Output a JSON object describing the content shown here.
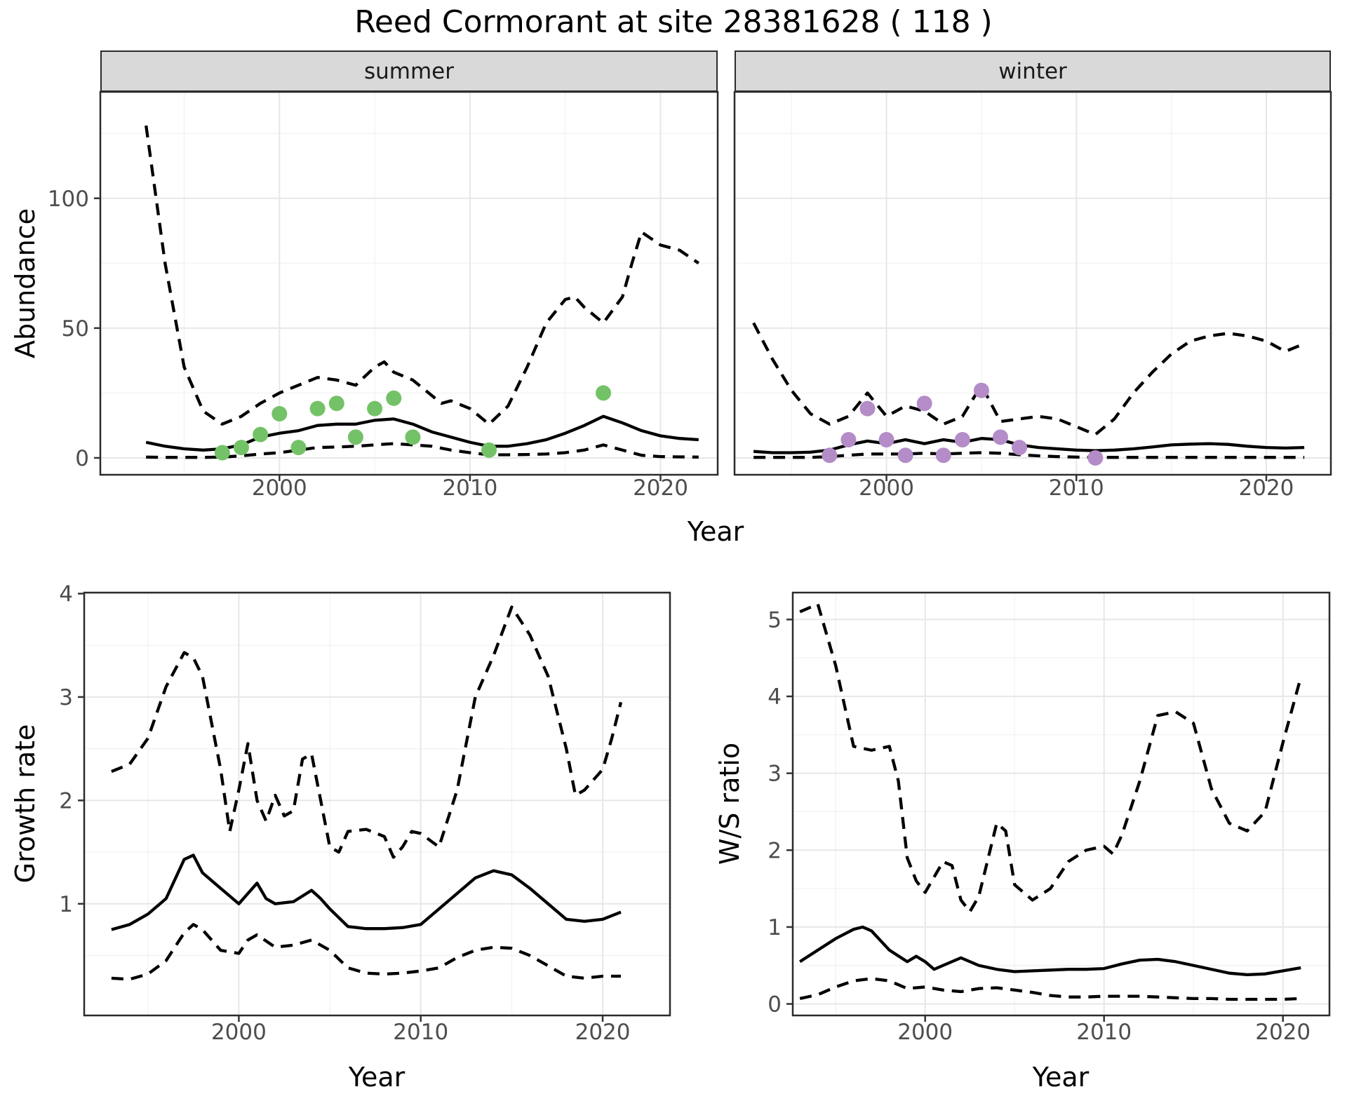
{
  "title": "Reed Cormorant at site 28381628 ( 118 )",
  "colors": {
    "summer_points": "#74c267",
    "winter_points": "#b48cc8",
    "line": "#000000",
    "grid_major": "#e7e7e7",
    "grid_minor": "#f3f3f3",
    "strip_bg": "#d9d9d9",
    "panel_border": "#2b2b2b",
    "tick_text": "#4d4d4d"
  },
  "chart_data": [
    {
      "id": "abundance_summer",
      "type": "line",
      "title": "summer",
      "xlabel": "Year",
      "ylabel": "Abundance",
      "xlim": [
        1990.6,
        2023.0
      ],
      "ylim": [
        -6.5,
        141
      ],
      "xticks": [
        2000,
        2010,
        2020
      ],
      "yticks": [
        0,
        50,
        100
      ],
      "xminor": [
        1995,
        2005,
        2015
      ],
      "yminor": [
        25,
        75,
        125
      ],
      "grid": true,
      "legend": "none",
      "series": [
        {
          "name": "upper_ci",
          "style": "dashed",
          "x": [
            1993,
            1994,
            1995,
            1996,
            1997,
            1998,
            1999,
            2000,
            2001,
            2002,
            2003,
            2004,
            2005,
            2005.5,
            2006,
            2007,
            2008,
            2008.5,
            2009,
            2010,
            2011,
            2012,
            2013,
            2014,
            2015,
            2015.5,
            2016,
            2017,
            2018,
            2018.5,
            2019,
            2020,
            2021,
            2022
          ],
          "y": [
            128,
            75,
            35,
            18,
            13,
            16,
            21,
            25,
            28,
            31,
            30,
            28,
            35,
            37,
            33,
            30,
            24,
            21,
            22,
            19,
            13,
            20,
            35,
            52,
            61,
            62,
            58,
            52,
            62,
            75,
            87,
            82,
            80,
            75
          ]
        },
        {
          "name": "median",
          "style": "solid",
          "x": [
            1993,
            1994,
            1995,
            1996,
            1997,
            1998,
            1999,
            2000,
            2001,
            2002,
            2003,
            2004,
            2005,
            2006,
            2007,
            2008,
            2009,
            2010,
            2011,
            2012,
            2013,
            2014,
            2015,
            2016,
            2017,
            2018,
            2019,
            2020,
            2021,
            2022
          ],
          "y": [
            6,
            4.5,
            3.5,
            3,
            3.5,
            5,
            8,
            9.5,
            10.5,
            12.5,
            13,
            13,
            14.5,
            15,
            13,
            10,
            8,
            6,
            4.5,
            4.5,
            5.5,
            7,
            9.5,
            12.5,
            16,
            13.5,
            10.5,
            8.5,
            7.5,
            7
          ]
        },
        {
          "name": "lower_ci",
          "style": "dashed",
          "x": [
            1993,
            1994,
            1995,
            1996,
            1997,
            1998,
            1999,
            2000,
            2001,
            2002,
            2003,
            2004,
            2005,
            2006,
            2007,
            2008,
            2009,
            2010,
            2011,
            2012,
            2013,
            2014,
            2015,
            2016,
            2017,
            2018,
            2019,
            2020,
            2021,
            2022
          ],
          "y": [
            0.3,
            0.2,
            0.2,
            0.2,
            0.3,
            0.8,
            1.5,
            2,
            3,
            4,
            4.2,
            4.5,
            5,
            5.5,
            5,
            4.5,
            3,
            2,
            1.2,
            1.2,
            1.3,
            1.5,
            2,
            3,
            5,
            3,
            1,
            0.5,
            0.4,
            0.3
          ]
        }
      ],
      "points": {
        "name": "observed_counts_summer",
        "color": "#74c267",
        "x": [
          1997,
          1998,
          1999,
          2000,
          2001,
          2002,
          2003,
          2004,
          2005,
          2006,
          2007,
          2011,
          2017
        ],
        "y": [
          2,
          4,
          9,
          17,
          4,
          19,
          21,
          8,
          19,
          23,
          8,
          3,
          25
        ]
      }
    },
    {
      "id": "abundance_winter",
      "type": "line",
      "title": "winter",
      "xlabel": "Year",
      "ylabel": "Abundance",
      "xlim": [
        1992.0,
        2023.4
      ],
      "ylim": [
        -6.5,
        141
      ],
      "xticks": [
        2000,
        2010,
        2020
      ],
      "yticks": [
        0,
        50,
        100
      ],
      "xminor": [
        1995,
        2005,
        2015
      ],
      "yminor": [
        25,
        75,
        125
      ],
      "grid": true,
      "legend": "none",
      "series": [
        {
          "name": "upper_ci",
          "style": "dashed",
          "x": [
            1993,
            1994,
            1995,
            1996,
            1997,
            1998,
            1999,
            2000,
            2001,
            2002,
            2003,
            2004,
            2005,
            2006,
            2007,
            2008,
            2009,
            2010,
            2011,
            2012,
            2013,
            2014,
            2015,
            2016,
            2017,
            2018,
            2019,
            2020,
            2021,
            2022
          ],
          "y": [
            52,
            38,
            26,
            17,
            13,
            16,
            25,
            16,
            20,
            18,
            13,
            16,
            28,
            14,
            15,
            16,
            15,
            12,
            9,
            15,
            25,
            33,
            40,
            45,
            47,
            48,
            47,
            45,
            41,
            44
          ]
        },
        {
          "name": "median",
          "style": "solid",
          "x": [
            1993,
            1994,
            1995,
            1996,
            1997,
            1998,
            1999,
            2000,
            2001,
            2002,
            2003,
            2004,
            2005,
            2006,
            2007,
            2008,
            2009,
            2010,
            2011,
            2012,
            2013,
            2014,
            2015,
            2016,
            2017,
            2018,
            2019,
            2020,
            2021,
            2022
          ],
          "y": [
            2.5,
            2,
            2,
            2.2,
            3,
            5,
            6.5,
            5.5,
            7,
            5.5,
            7,
            6,
            7.5,
            7,
            5,
            4,
            3.5,
            3,
            2.8,
            3,
            3.5,
            4.2,
            5,
            5.3,
            5.5,
            5.2,
            4.5,
            4,
            3.8,
            4
          ]
        },
        {
          "name": "lower_ci",
          "style": "dashed",
          "x": [
            1993,
            1994,
            1995,
            1996,
            1997,
            1998,
            1999,
            2000,
            2001,
            2002,
            2003,
            2004,
            2005,
            2006,
            2007,
            2008,
            2009,
            2010,
            2011,
            2012,
            2013,
            2014,
            2015,
            2016,
            2017,
            2018,
            2019,
            2020,
            2021,
            2022
          ],
          "y": [
            0.2,
            0.2,
            0.2,
            0.2,
            0.5,
            1,
            1.5,
            1.5,
            1.5,
            1.8,
            1.5,
            1.8,
            2,
            1.8,
            1.2,
            0.8,
            0.5,
            0.3,
            0.2,
            0.2,
            0.2,
            0.2,
            0.2,
            0.2,
            0.2,
            0.2,
            0.2,
            0.2,
            0.2,
            0.2
          ]
        }
      ],
      "points": {
        "name": "observed_counts_winter",
        "color": "#b48cc8",
        "x": [
          1997,
          1998,
          1999,
          2000,
          2001,
          2002,
          2003,
          2004,
          2005,
          2006,
          2007,
          2011
        ],
        "y": [
          1,
          7,
          19,
          7,
          1,
          21,
          1,
          7,
          26,
          8,
          4,
          0
        ]
      }
    },
    {
      "id": "growth_rate",
      "type": "line",
      "title": "",
      "xlabel": "Year",
      "ylabel": "Growth rate",
      "xlim": [
        1991.5,
        2023.7
      ],
      "ylim": [
        -0.08,
        4.01
      ],
      "xticks": [
        2000,
        2010,
        2020
      ],
      "yticks": [
        1,
        2,
        3,
        4
      ],
      "xminor": [
        1995,
        2005,
        2015
      ],
      "yminor": [
        0.5,
        1.5,
        2.5,
        3.5
      ],
      "grid": true,
      "legend": "none",
      "series": [
        {
          "name": "upper_ci",
          "style": "dashed",
          "x": [
            1993,
            1994,
            1995,
            1996,
            1997,
            1997.5,
            1998,
            1999,
            1999.5,
            2000,
            2000.5,
            2001,
            2001.5,
            2002,
            2002.5,
            2003,
            2003.5,
            2004,
            2004.5,
            2005,
            2005.5,
            2006,
            2007,
            2008,
            2008.5,
            2009,
            2009.5,
            2010,
            2011,
            2012,
            2013,
            2014,
            2015,
            2016,
            2017,
            2018,
            2018.5,
            2019,
            2020,
            2020.5,
            2021
          ],
          "y": [
            2.28,
            2.35,
            2.6,
            3.1,
            3.43,
            3.38,
            3.2,
            2.3,
            1.7,
            2.1,
            2.55,
            2.0,
            1.8,
            2.05,
            1.85,
            1.9,
            2.4,
            2.45,
            2.0,
            1.55,
            1.5,
            1.7,
            1.72,
            1.65,
            1.45,
            1.55,
            1.7,
            1.68,
            1.55,
            2.1,
            3.0,
            3.4,
            3.87,
            3.6,
            3.2,
            2.5,
            2.05,
            2.1,
            2.3,
            2.6,
            2.95
          ]
        },
        {
          "name": "median",
          "style": "solid",
          "x": [
            1993,
            1994,
            1995,
            1996,
            1997,
            1997.5,
            1998,
            1999,
            2000,
            2000.5,
            2001,
            2001.5,
            2002,
            2003,
            2004,
            2004.5,
            2005,
            2006,
            2007,
            2008,
            2009,
            2010,
            2011,
            2012,
            2013,
            2014,
            2015,
            2016,
            2017,
            2018,
            2019,
            2020,
            2021
          ],
          "y": [
            0.75,
            0.8,
            0.9,
            1.05,
            1.43,
            1.47,
            1.3,
            1.15,
            1.0,
            1.1,
            1.2,
            1.05,
            1.0,
            1.02,
            1.13,
            1.05,
            0.95,
            0.78,
            0.76,
            0.76,
            0.77,
            0.8,
            0.95,
            1.1,
            1.25,
            1.32,
            1.28,
            1.15,
            1.0,
            0.85,
            0.83,
            0.85,
            0.92
          ]
        },
        {
          "name": "lower_ci",
          "style": "dashed",
          "x": [
            1993,
            1994,
            1995,
            1996,
            1997,
            1997.5,
            1998,
            1999,
            2000,
            2000.5,
            2001,
            2002,
            2003,
            2004,
            2004.5,
            2005,
            2006,
            2007,
            2008,
            2009,
            2010,
            2011,
            2012,
            2013,
            2014,
            2015,
            2016,
            2017,
            2018,
            2019,
            2020,
            2021
          ],
          "y": [
            0.28,
            0.27,
            0.32,
            0.45,
            0.72,
            0.8,
            0.75,
            0.55,
            0.52,
            0.65,
            0.7,
            0.58,
            0.6,
            0.65,
            0.6,
            0.55,
            0.38,
            0.33,
            0.32,
            0.33,
            0.35,
            0.38,
            0.48,
            0.55,
            0.58,
            0.57,
            0.5,
            0.4,
            0.3,
            0.28,
            0.3,
            0.3
          ]
        }
      ]
    },
    {
      "id": "ws_ratio",
      "type": "line",
      "title": "",
      "xlabel": "Year",
      "ylabel": "W/S ratio",
      "xlim": [
        1992.6,
        2022.6
      ],
      "ylim": [
        -0.15,
        5.35
      ],
      "xticks": [
        2000,
        2010,
        2020
      ],
      "yticks": [
        0,
        1,
        2,
        3,
        4,
        5
      ],
      "xminor": [
        1995,
        2005,
        2015
      ],
      "yminor": [
        0.5,
        1.5,
        2.5,
        3.5,
        4.5
      ],
      "grid": true,
      "legend": "none",
      "series": [
        {
          "name": "upper_ci",
          "style": "dashed",
          "x": [
            1993,
            1994,
            1995,
            1996,
            1997,
            1998,
            1998.5,
            1999,
            1999.5,
            2000,
            2001,
            2001.5,
            2002,
            2002.5,
            2003,
            2004,
            2004.5,
            2005,
            2006,
            2007,
            2008,
            2009,
            2010,
            2010.5,
            2011,
            2012,
            2013,
            2014,
            2015,
            2016,
            2017,
            2018,
            2019,
            2020,
            2021
          ],
          "y": [
            5.1,
            5.2,
            4.4,
            3.35,
            3.3,
            3.35,
            2.9,
            1.9,
            1.6,
            1.45,
            1.85,
            1.8,
            1.35,
            1.2,
            1.4,
            2.35,
            2.25,
            1.55,
            1.35,
            1.5,
            1.85,
            2.0,
            2.05,
            1.95,
            2.2,
            2.9,
            3.75,
            3.8,
            3.65,
            2.8,
            2.35,
            2.25,
            2.5,
            3.4,
            4.25
          ]
        },
        {
          "name": "median",
          "style": "solid",
          "x": [
            1993,
            1994,
            1995,
            1996,
            1996.5,
            1997,
            1998,
            1999,
            1999.5,
            2000,
            2000.5,
            2001,
            2002,
            2003,
            2004,
            2005,
            2006,
            2007,
            2008,
            2009,
            2010,
            2011,
            2012,
            2013,
            2014,
            2015,
            2016,
            2017,
            2018,
            2019,
            2020,
            2021
          ],
          "y": [
            0.55,
            0.7,
            0.85,
            0.97,
            1.0,
            0.95,
            0.7,
            0.55,
            0.62,
            0.55,
            0.45,
            0.5,
            0.6,
            0.5,
            0.45,
            0.42,
            0.43,
            0.44,
            0.45,
            0.45,
            0.46,
            0.52,
            0.57,
            0.58,
            0.55,
            0.5,
            0.45,
            0.4,
            0.38,
            0.39,
            0.43,
            0.47
          ]
        },
        {
          "name": "lower_ci",
          "style": "dashed",
          "x": [
            1993,
            1994,
            1995,
            1996,
            1997,
            1998,
            1999,
            2000,
            2001,
            2002,
            2003,
            2004,
            2005,
            2006,
            2007,
            2008,
            2009,
            2010,
            2011,
            2012,
            2013,
            2014,
            2015,
            2016,
            2017,
            2018,
            2019,
            2020,
            2021
          ],
          "y": [
            0.07,
            0.12,
            0.22,
            0.3,
            0.33,
            0.3,
            0.2,
            0.22,
            0.18,
            0.16,
            0.2,
            0.21,
            0.18,
            0.15,
            0.11,
            0.09,
            0.09,
            0.1,
            0.1,
            0.1,
            0.09,
            0.08,
            0.07,
            0.07,
            0.06,
            0.06,
            0.06,
            0.06,
            0.07
          ]
        }
      ]
    }
  ]
}
